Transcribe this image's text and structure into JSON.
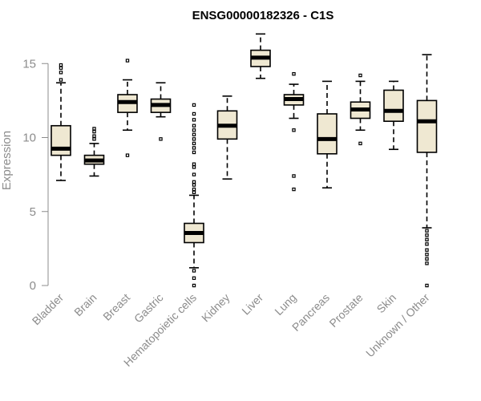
{
  "chart_data": {
    "type": "boxplot",
    "title": "ENSG00000182326 - C1S",
    "xlabel": "",
    "ylabel": "Expression",
    "ylim": [
      0,
      17
    ],
    "yticks": [
      0,
      5,
      10,
      15
    ],
    "box_fill": "#efe8d2",
    "categories": [
      "Bladder",
      "Brain",
      "Breast",
      "Gastric",
      "Hematopoietic cells",
      "Kidney",
      "Liver",
      "Lung",
      "Pancreas",
      "Prostate",
      "Skin",
      "Unknown / Other"
    ],
    "boxes": [
      {
        "name": "Bladder",
        "whisker_low": 7.1,
        "q1": 8.8,
        "median": 9.25,
        "q3": 10.8,
        "whisker_high": 13.7,
        "outliers": [
          13.9,
          14.4,
          14.7,
          14.9
        ]
      },
      {
        "name": "Brain",
        "whisker_low": 7.4,
        "q1": 8.2,
        "median": 8.45,
        "q3": 8.8,
        "whisker_high": 9.6,
        "outliers": [
          9.9,
          10.1,
          10.4,
          10.6
        ]
      },
      {
        "name": "Breast",
        "whisker_low": 10.5,
        "q1": 11.7,
        "median": 12.4,
        "q3": 12.9,
        "whisker_high": 13.9,
        "outliers": [
          8.8,
          15.2
        ]
      },
      {
        "name": "Gastric",
        "whisker_low": 11.4,
        "q1": 11.7,
        "median": 12.2,
        "q3": 12.6,
        "whisker_high": 13.7,
        "outliers": [
          9.9
        ]
      },
      {
        "name": "Hematopoietic cells",
        "whisker_low": 1.2,
        "q1": 2.9,
        "median": 3.55,
        "q3": 4.2,
        "whisker_high": 6.1,
        "outliers": [
          0.0,
          0.5,
          1.0,
          6.3,
          6.5,
          6.8,
          7.0,
          7.5,
          8.0,
          8.2,
          9.0,
          9.3,
          9.6,
          9.9,
          10.2,
          10.5,
          10.8,
          11.2,
          11.6,
          12.2
        ]
      },
      {
        "name": "Kidney",
        "whisker_low": 7.2,
        "q1": 9.9,
        "median": 10.8,
        "q3": 11.8,
        "whisker_high": 12.8,
        "outliers": []
      },
      {
        "name": "Liver",
        "whisker_low": 14.0,
        "q1": 14.8,
        "median": 15.4,
        "q3": 15.9,
        "whisker_high": 17.0,
        "outliers": []
      },
      {
        "name": "Lung",
        "whisker_low": 11.3,
        "q1": 12.2,
        "median": 12.6,
        "q3": 12.9,
        "whisker_high": 13.6,
        "outliers": [
          6.5,
          7.4,
          10.5,
          14.3
        ]
      },
      {
        "name": "Pancreas",
        "whisker_low": 6.6,
        "q1": 8.9,
        "median": 9.9,
        "q3": 11.6,
        "whisker_high": 13.8,
        "outliers": []
      },
      {
        "name": "Prostate",
        "whisker_low": 10.5,
        "q1": 11.3,
        "median": 11.9,
        "q3": 12.4,
        "whisker_high": 13.8,
        "outliers": [
          9.6,
          14.2
        ]
      },
      {
        "name": "Skin",
        "whisker_low": 9.2,
        "q1": 11.1,
        "median": 11.8,
        "q3": 13.2,
        "whisker_high": 13.8,
        "outliers": []
      },
      {
        "name": "Unknown / Other",
        "whisker_low": 3.9,
        "q1": 9.0,
        "median": 11.1,
        "q3": 12.5,
        "whisker_high": 15.6,
        "outliers": [
          0.0,
          1.5,
          1.8,
          2.1,
          2.4,
          2.8,
          3.1,
          3.4,
          3.7
        ]
      }
    ]
  }
}
